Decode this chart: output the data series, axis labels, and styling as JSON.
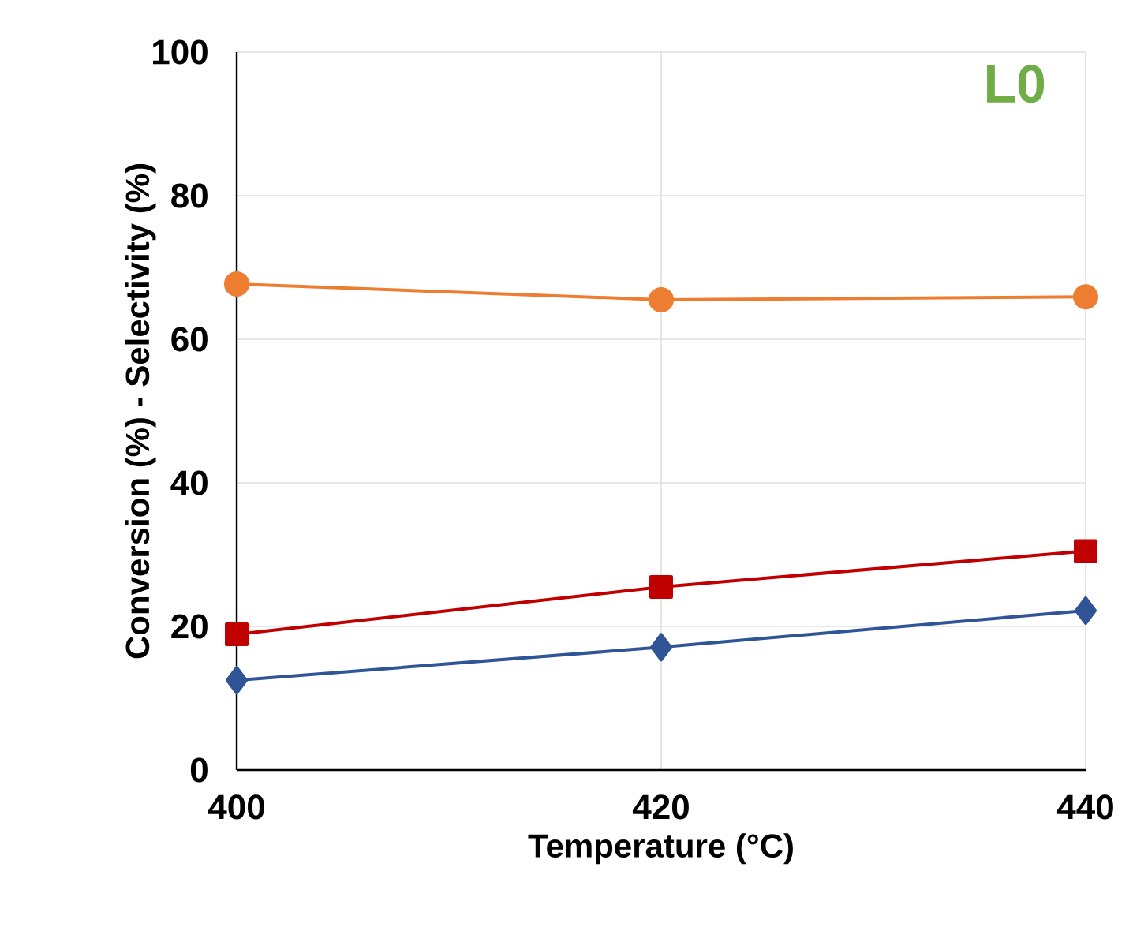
{
  "chart_data": {
    "type": "line",
    "xlabel": "Temperature (°C)",
    "ylabel": "Conversion (%) - Selectivity (%)",
    "annotations": [
      "L0"
    ],
    "x": [
      400,
      420,
      440
    ],
    "series": [
      {
        "color": "#ed7d31",
        "marker": "circle",
        "values": [
          67.7,
          65.5,
          65.9
        ]
      },
      {
        "color": "#c00000",
        "marker": "square",
        "values": [
          18.9,
          25.5,
          30.5
        ]
      },
      {
        "color": "#2f5597",
        "marker": "diamond",
        "values": [
          12.5,
          17.1,
          22.2
        ]
      }
    ],
    "xlim": [
      400,
      440
    ],
    "xticks": [
      400,
      420,
      440
    ],
    "ylim": [
      0,
      100
    ],
    "yticks": [
      0,
      20,
      40,
      60,
      80,
      100
    ],
    "grid": true
  }
}
